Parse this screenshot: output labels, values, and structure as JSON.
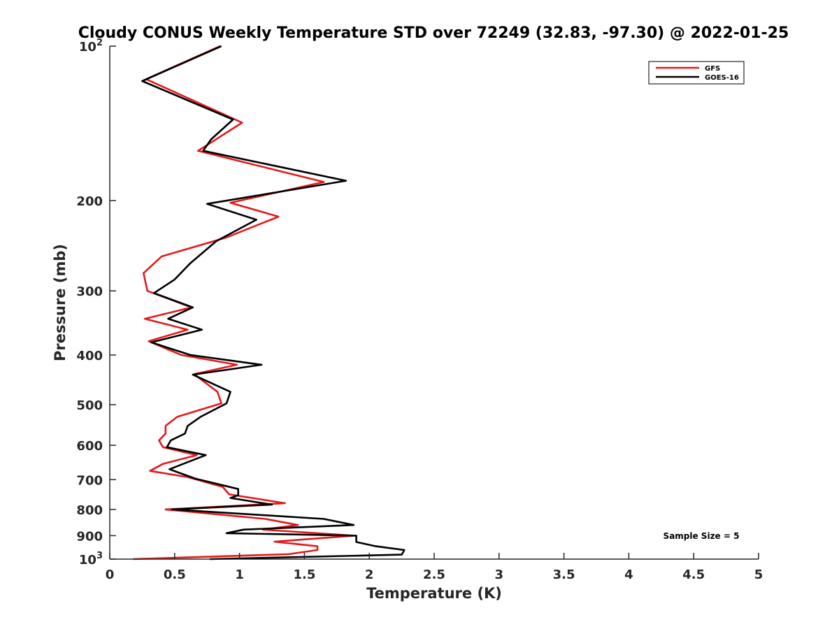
{
  "chart_data": {
    "type": "line",
    "title": "Cloudy CONUS Weekly Temperature STD over 72249 (32.83, -97.30) @ 2022-01-25",
    "xlabel": "Temperature (K)",
    "ylabel": "Pressure (mb)",
    "xlim": [
      0,
      5
    ],
    "ylim": [
      100,
      1000
    ],
    "yscale": "log",
    "yreversed": true,
    "grid": false,
    "legend_position": "top-right",
    "x_ticks": [
      0,
      0.5,
      1,
      1.5,
      2,
      2.5,
      3,
      3.5,
      4,
      4.5,
      5
    ],
    "x_tick_labels": [
      "0",
      "0.5",
      "1",
      "1.5",
      "2",
      "2.5",
      "3",
      "3.5",
      "4",
      "4.5",
      "5"
    ],
    "y_ticks": [
      {
        "value": 100,
        "base": "10",
        "exp": "2"
      },
      {
        "value": 200,
        "label": "200"
      },
      {
        "value": 300,
        "label": "300"
      },
      {
        "value": 400,
        "label": "400"
      },
      {
        "value": 500,
        "label": "500"
      },
      {
        "value": 600,
        "label": "600"
      },
      {
        "value": 700,
        "label": "700"
      },
      {
        "value": 800,
        "label": "800"
      },
      {
        "value": 900,
        "label": "900"
      },
      {
        "value": 1000,
        "base": "10",
        "exp": "3"
      }
    ],
    "annotation": "Sample Size = 5",
    "series": [
      {
        "name": "GFS",
        "color": "#e31a1c",
        "points": [
          [
            0.85,
            100
          ],
          [
            0.28,
            116
          ],
          [
            1.02,
            141
          ],
          [
            0.68,
            160
          ],
          [
            1.65,
            184
          ],
          [
            0.93,
            202
          ],
          [
            1.3,
            215
          ],
          [
            0.9,
            236
          ],
          [
            0.4,
            257
          ],
          [
            0.26,
            277
          ],
          [
            0.29,
            300
          ],
          [
            0.63,
            323
          ],
          [
            0.27,
            340
          ],
          [
            0.6,
            357
          ],
          [
            0.3,
            376
          ],
          [
            0.55,
            400
          ],
          [
            0.98,
            418
          ],
          [
            0.65,
            436
          ],
          [
            0.83,
            472
          ],
          [
            0.86,
            497
          ],
          [
            0.52,
            528
          ],
          [
            0.43,
            550
          ],
          [
            0.43,
            569
          ],
          [
            0.38,
            587
          ],
          [
            0.41,
            605
          ],
          [
            0.67,
            627
          ],
          [
            0.41,
            652
          ],
          [
            0.31,
            673
          ],
          [
            0.6,
            692
          ],
          [
            0.87,
            723
          ],
          [
            0.92,
            748
          ],
          [
            1.35,
            778
          ],
          [
            0.43,
            800
          ],
          [
            1.2,
            835
          ],
          [
            1.45,
            858
          ],
          [
            1.18,
            876
          ],
          [
            1.88,
            900
          ],
          [
            1.27,
            925
          ],
          [
            1.6,
            944
          ],
          [
            1.6,
            960
          ],
          [
            1.38,
            978
          ],
          [
            0.18,
            1000
          ]
        ]
      },
      {
        "name": "GOES-16",
        "color": "#000000",
        "points": [
          [
            0.86,
            100
          ],
          [
            0.25,
            117
          ],
          [
            0.95,
            139
          ],
          [
            0.78,
            152
          ],
          [
            0.72,
            160
          ],
          [
            1.82,
            183
          ],
          [
            0.75,
            203
          ],
          [
            1.13,
            218
          ],
          [
            0.82,
            240
          ],
          [
            0.62,
            265
          ],
          [
            0.5,
            285
          ],
          [
            0.34,
            303
          ],
          [
            0.64,
            323
          ],
          [
            0.45,
            340
          ],
          [
            0.71,
            357
          ],
          [
            0.32,
            378
          ],
          [
            0.62,
            400
          ],
          [
            1.17,
            418
          ],
          [
            0.64,
            437
          ],
          [
            0.93,
            472
          ],
          [
            0.9,
            497
          ],
          [
            0.7,
            528
          ],
          [
            0.6,
            550
          ],
          [
            0.58,
            569
          ],
          [
            0.47,
            587
          ],
          [
            0.44,
            605
          ],
          [
            0.74,
            627
          ],
          [
            0.46,
            668
          ],
          [
            0.66,
            697
          ],
          [
            0.99,
            730
          ],
          [
            0.99,
            751
          ],
          [
            0.93,
            760
          ],
          [
            1.25,
            783
          ],
          [
            0.48,
            800
          ],
          [
            1.65,
            835
          ],
          [
            1.88,
            858
          ],
          [
            1.03,
            876
          ],
          [
            0.9,
            890
          ],
          [
            1.9,
            900
          ],
          [
            1.9,
            926
          ],
          [
            2.05,
            944
          ],
          [
            2.27,
            960
          ],
          [
            2.25,
            980
          ],
          [
            0.77,
            1000
          ]
        ]
      }
    ]
  }
}
